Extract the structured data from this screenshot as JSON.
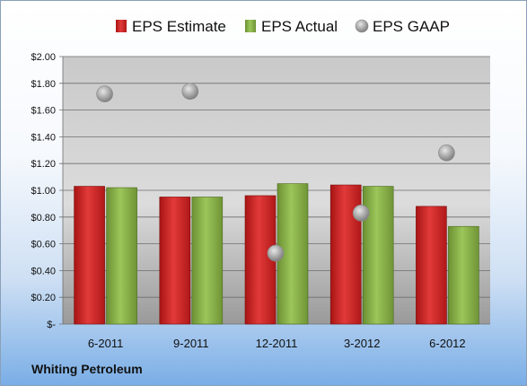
{
  "chart_data": {
    "type": "bar",
    "categories": [
      "6-2011",
      "9-2011",
      "12-2011",
      "3-2012",
      "6-2012"
    ],
    "series": [
      {
        "name": "EPS Estimate",
        "type": "bar",
        "color": "#d42a2a",
        "values": [
          1.03,
          0.95,
          0.96,
          1.04,
          0.88
        ]
      },
      {
        "name": "EPS Actual",
        "type": "bar",
        "color": "#8ab449",
        "values": [
          1.02,
          0.95,
          1.05,
          1.03,
          0.73
        ]
      },
      {
        "name": "EPS GAAP",
        "type": "scatter",
        "color": "#a9a9a9",
        "values": [
          1.72,
          1.74,
          0.53,
          0.83,
          1.28
        ]
      }
    ],
    "ylim": [
      0,
      2.0
    ],
    "yticks": [
      0,
      0.2,
      0.4,
      0.6,
      0.8,
      1.0,
      1.2,
      1.4,
      1.6,
      1.8,
      2.0
    ],
    "ytick_labels": [
      "$-",
      "$0.20",
      "$0.40",
      "$0.60",
      "$0.80",
      "$1.00",
      "$1.20",
      "$1.40",
      "$1.60",
      "$1.80",
      "$2.00"
    ],
    "grid": true,
    "legend_position": "top"
  },
  "company": "Whiting Petroleum"
}
